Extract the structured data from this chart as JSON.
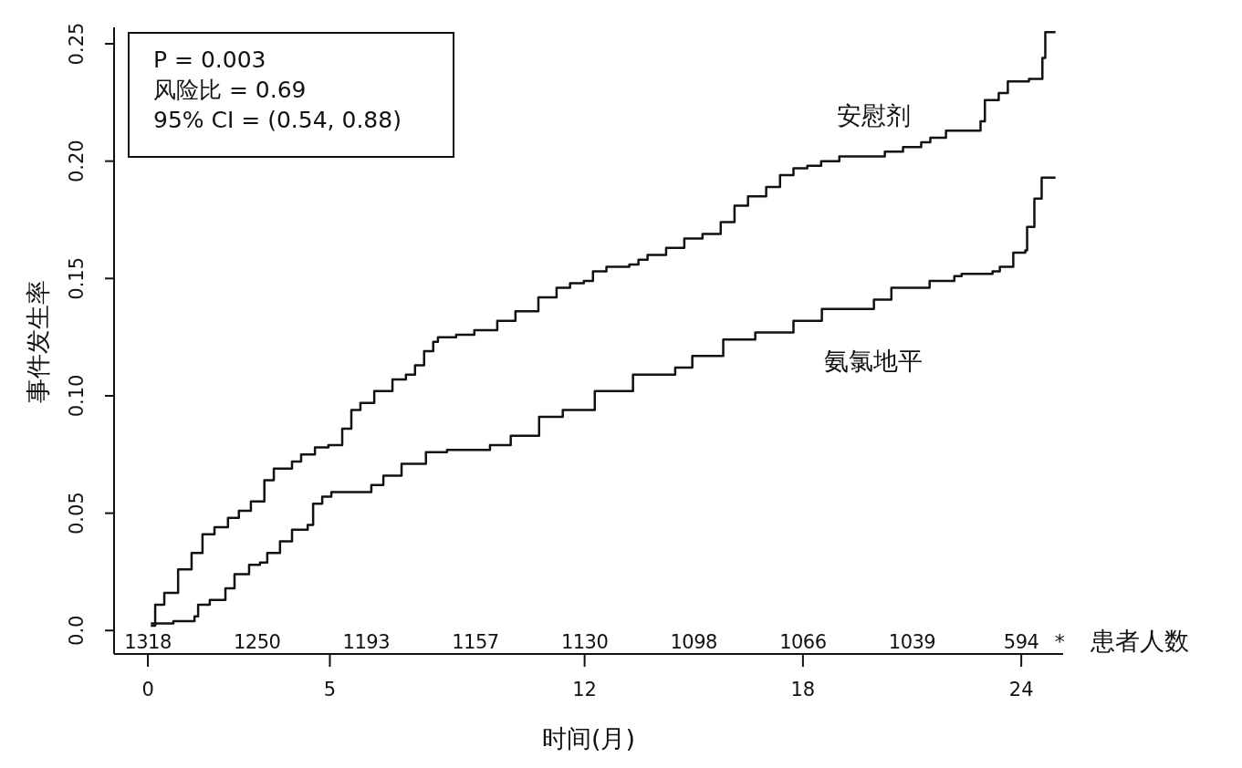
{
  "chart_data": {
    "type": "step",
    "xlabel": "时间(月)",
    "ylabel": "事件发生率",
    "xlim": [
      -0.93,
      25.15
    ],
    "ylim": [
      -0.01,
      0.257
    ],
    "xticks": [
      0,
      5,
      12,
      18,
      24
    ],
    "yticks": [
      {
        "value": 0,
        "label": "0.0"
      },
      0.05,
      {
        "value": 0.1,
        "label": "0.10"
      },
      0.15,
      {
        "value": 0.2,
        "label": "0.20"
      },
      0.25
    ],
    "legend": false,
    "series": [
      {
        "name": "安慰剂",
        "color": "#111111",
        "x": [
          0.08,
          0.2,
          0.45,
          0.83,
          1.2,
          1.5,
          1.83,
          2.2,
          2.5,
          2.83,
          3.2,
          3.46,
          3.96,
          4.21,
          4.59,
          4.96,
          5.34,
          5.59,
          5.84,
          6.22,
          6.72,
          7.09,
          7.34,
          7.59,
          7.84,
          7.97,
          8.47,
          8.97,
          9.6,
          10.1,
          10.73,
          11.23,
          11.6,
          11.98,
          12.23,
          12.6,
          13.23,
          13.48,
          13.73,
          14.24,
          14.74,
          15.24,
          15.74,
          16.12,
          16.49,
          16.99,
          17.37,
          17.74,
          18.12,
          18.5,
          19.0,
          20.25,
          20.75,
          21.25,
          21.5,
          21.93,
          22.88,
          23.0,
          23.38,
          23.63,
          24.21,
          24.58,
          24.66,
          24.94
        ],
        "values": [
          0.002,
          0.011,
          0.016,
          0.026,
          0.033,
          0.041,
          0.044,
          0.048,
          0.051,
          0.055,
          0.064,
          0.069,
          0.072,
          0.075,
          0.078,
          0.079,
          0.086,
          0.094,
          0.097,
          0.102,
          0.107,
          0.109,
          0.113,
          0.119,
          0.123,
          0.125,
          0.126,
          0.128,
          0.132,
          0.136,
          0.142,
          0.146,
          0.148,
          0.149,
          0.153,
          0.155,
          0.156,
          0.158,
          0.16,
          0.163,
          0.167,
          0.169,
          0.174,
          0.181,
          0.185,
          0.189,
          0.194,
          0.197,
          0.198,
          0.2,
          0.202,
          0.204,
          0.206,
          0.208,
          0.21,
          0.213,
          0.217,
          0.226,
          0.229,
          0.234,
          0.235,
          0.244,
          0.255,
          0.255
        ]
      },
      {
        "name": "氨氯地平",
        "color": "#111111",
        "x": [
          0.08,
          0.7,
          1.28,
          1.38,
          1.7,
          2.13,
          2.38,
          2.78,
          3.08,
          3.28,
          3.63,
          3.96,
          4.39,
          4.54,
          4.79,
          5.04,
          6.14,
          6.47,
          6.97,
          7.64,
          8.22,
          9.4,
          9.97,
          10.75,
          11.4,
          12.28,
          13.33,
          14.49,
          14.96,
          15.81,
          16.69,
          17.74,
          18.52,
          19.95,
          20.43,
          21.48,
          22.16,
          22.36,
          23.21,
          23.41,
          23.78,
          24.11,
          24.16,
          24.36,
          24.56,
          24.94
        ],
        "values": [
          0.003,
          0.004,
          0.006,
          0.011,
          0.013,
          0.018,
          0.024,
          0.028,
          0.029,
          0.033,
          0.038,
          0.043,
          0.045,
          0.054,
          0.057,
          0.059,
          0.062,
          0.066,
          0.071,
          0.076,
          0.077,
          0.079,
          0.083,
          0.091,
          0.094,
          0.102,
          0.109,
          0.112,
          0.117,
          0.124,
          0.127,
          0.132,
          0.137,
          0.141,
          0.146,
          0.149,
          0.151,
          0.152,
          0.153,
          0.155,
          0.161,
          0.162,
          0.172,
          0.184,
          0.193,
          0.193
        ]
      }
    ],
    "annotations": [
      "P = 0.003",
      "风险比 = 0.69",
      "95% CI = (0.54, 0.88)",
      "1318",
      "1250",
      "1193",
      "1157",
      "1130",
      "1098",
      "1066",
      "1039",
      "594",
      "*",
      "患者人数"
    ]
  }
}
